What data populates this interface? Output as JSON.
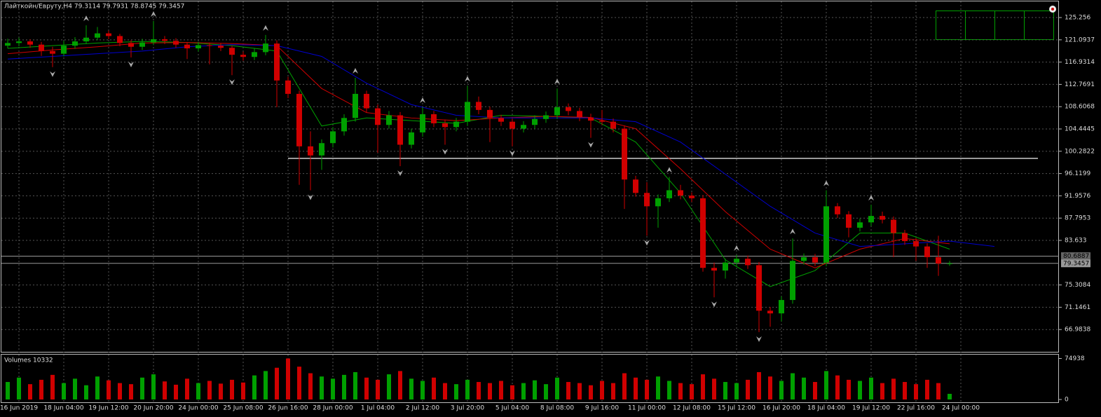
{
  "chart_data": {
    "type": "candlestick",
    "title": "Лайткойн/Евруту,H4  79.3114 79.7931 78.8745 79.3457",
    "bull_color": "#00a000",
    "bear_color": "#d00000",
    "ohlc": [
      [
        120.0,
        121.3,
        119.5,
        120.5
      ],
      [
        120.5,
        121.5,
        119.9,
        120.8
      ],
      [
        120.8,
        121.2,
        119.6,
        120.2
      ],
      [
        120.2,
        120.7,
        118.1,
        119.0
      ],
      [
        119.0,
        119.8,
        116.0,
        118.5
      ],
      [
        118.5,
        120.9,
        118.0,
        120.0
      ],
      [
        120.0,
        121.6,
        119.4,
        120.8
      ],
      [
        120.8,
        123.8,
        120.3,
        121.5
      ],
      [
        121.5,
        123.5,
        121.0,
        122.3
      ],
      [
        122.3,
        122.8,
        121.2,
        121.8
      ],
      [
        121.8,
        122.2,
        119.9,
        120.5
      ],
      [
        120.5,
        121.0,
        117.8,
        119.8
      ],
      [
        119.8,
        121.3,
        119.2,
        120.6
      ],
      [
        120.6,
        124.6,
        120.1,
        121.2
      ],
      [
        121.2,
        121.8,
        120.3,
        120.9
      ],
      [
        120.9,
        121.4,
        119.6,
        120.2
      ],
      [
        120.2,
        120.7,
        117.5,
        119.5
      ],
      [
        119.5,
        120.7,
        118.9,
        120.1
      ],
      [
        120.1,
        120.6,
        116.5,
        120.0
      ],
      [
        120.0,
        120.5,
        119.0,
        119.6
      ],
      [
        119.6,
        120.0,
        114.5,
        118.3
      ],
      [
        118.3,
        118.9,
        117.2,
        117.9
      ],
      [
        117.9,
        119.5,
        117.3,
        118.8
      ],
      [
        118.8,
        122.0,
        118.2,
        120.4
      ],
      [
        120.4,
        121.0,
        108.5,
        113.5
      ],
      [
        113.5,
        114.2,
        110.2,
        111.0
      ],
      [
        111.0,
        111.6,
        94.0,
        101.2
      ],
      [
        101.2,
        104.0,
        93.0,
        99.5
      ],
      [
        99.5,
        102.5,
        96.8,
        101.8
      ],
      [
        101.8,
        104.8,
        101.0,
        104.0
      ],
      [
        104.0,
        107.2,
        103.2,
        106.5
      ],
      [
        106.5,
        114.0,
        105.8,
        111.0
      ],
      [
        111.0,
        111.6,
        107.5,
        108.3
      ],
      [
        108.3,
        109.0,
        100.0,
        105.2
      ],
      [
        105.2,
        107.8,
        104.5,
        107.0
      ],
      [
        107.0,
        107.6,
        97.5,
        101.5
      ],
      [
        101.5,
        104.5,
        100.8,
        103.8
      ],
      [
        103.8,
        108.5,
        103.0,
        107.2
      ],
      [
        107.2,
        107.8,
        104.8,
        105.5
      ],
      [
        105.5,
        106.2,
        101.5,
        104.8
      ],
      [
        104.8,
        106.5,
        104.0,
        105.8
      ],
      [
        105.8,
        112.5,
        105.0,
        109.5
      ],
      [
        109.5,
        110.5,
        107.2,
        108.0
      ],
      [
        108.0,
        108.6,
        102.0,
        106.5
      ],
      [
        106.5,
        107.1,
        105.0,
        105.8
      ],
      [
        105.8,
        106.4,
        101.2,
        104.5
      ],
      [
        104.5,
        105.9,
        103.8,
        105.2
      ],
      [
        105.2,
        107.0,
        104.5,
        106.3
      ],
      [
        106.3,
        107.7,
        105.6,
        107.0
      ],
      [
        107.0,
        112.0,
        106.3,
        108.5
      ],
      [
        108.5,
        109.2,
        107.0,
        107.8
      ],
      [
        107.8,
        108.4,
        105.9,
        106.6
      ],
      [
        106.6,
        107.3,
        102.8,
        106.0
      ],
      [
        106.0,
        108.0,
        105.2,
        105.8
      ],
      [
        105.8,
        106.4,
        103.8,
        104.5
      ],
      [
        104.5,
        105.1,
        89.5,
        95.0
      ],
      [
        95.0,
        95.7,
        91.8,
        92.5
      ],
      [
        92.5,
        94.5,
        84.5,
        90.0
      ],
      [
        90.0,
        92.2,
        86.0,
        91.5
      ],
      [
        91.5,
        95.5,
        90.8,
        93.0
      ],
      [
        93.0,
        94.0,
        91.3,
        92.0
      ],
      [
        92.0,
        92.6,
        90.8,
        91.5
      ],
      [
        91.5,
        92.1,
        77.8,
        78.5
      ],
      [
        78.5,
        79.5,
        73.0,
        78.0
      ],
      [
        78.0,
        80.2,
        76.5,
        79.5
      ],
      [
        79.5,
        80.9,
        78.8,
        80.2
      ],
      [
        80.2,
        80.8,
        78.3,
        79.0
      ],
      [
        79.0,
        79.6,
        66.5,
        70.5
      ],
      [
        70.5,
        71.2,
        67.5,
        70.0
      ],
      [
        70.0,
        73.2,
        68.5,
        72.5
      ],
      [
        72.5,
        84.0,
        71.8,
        79.8
      ],
      [
        79.8,
        81.2,
        79.1,
        80.5
      ],
      [
        80.5,
        81.1,
        78.8,
        79.5
      ],
      [
        79.5,
        93.0,
        78.8,
        90.0
      ],
      [
        90.0,
        90.6,
        87.8,
        88.5
      ],
      [
        88.5,
        89.1,
        84.2,
        86.0
      ],
      [
        86.0,
        87.7,
        85.3,
        87.0
      ],
      [
        87.0,
        90.3,
        86.3,
        88.2
      ],
      [
        88.2,
        89.0,
        86.8,
        87.5
      ],
      [
        87.5,
        88.1,
        80.5,
        85.0
      ],
      [
        85.0,
        85.6,
        82.8,
        83.5
      ],
      [
        83.5,
        84.1,
        79.8,
        82.5
      ],
      [
        82.5,
        83.1,
        78.5,
        80.5
      ],
      [
        80.5,
        84.5,
        77.0,
        79.3114
      ],
      [
        79.3114,
        79.7931,
        78.8745,
        79.3457
      ]
    ],
    "ma": [
      {
        "color": "#00a000",
        "x": [
          0,
          4,
          8,
          12,
          16,
          20,
          24,
          28,
          32,
          36,
          40,
          44,
          48,
          52,
          56,
          60,
          64,
          68,
          72,
          76,
          80,
          84
        ],
        "values": [
          119.5,
          120.0,
          120.5,
          120.8,
          120.6,
          120.0,
          119.0,
          105,
          106.5,
          106,
          105.5,
          107,
          106.8,
          106.5,
          102,
          92.5,
          80,
          75,
          78,
          85,
          85,
          82
        ]
      },
      {
        "color": "#d00000",
        "x": [
          0,
          4,
          8,
          12,
          16,
          20,
          24,
          28,
          32,
          36,
          40,
          44,
          48,
          52,
          56,
          60,
          64,
          68,
          72,
          76,
          80,
          84
        ],
        "values": [
          118.5,
          119.2,
          119.8,
          120.5,
          120.6,
          120.4,
          120.0,
          112,
          107.5,
          106.5,
          106,
          106.5,
          106.8,
          106.6,
          104.5,
          97,
          89,
          82,
          78.5,
          82,
          84,
          83
        ]
      },
      {
        "color": "#0000d0",
        "x": [
          0,
          4,
          8,
          12,
          16,
          20,
          24,
          28,
          32,
          36,
          40,
          44,
          48,
          52,
          56,
          60,
          64,
          68,
          72,
          76,
          80,
          84,
          88
        ],
        "values": [
          117.5,
          118.0,
          118.5,
          119.0,
          119.8,
          120.2,
          120.0,
          118,
          113,
          109,
          107,
          106.5,
          106.5,
          106.5,
          105.8,
          102,
          96,
          90,
          85,
          82.5,
          83,
          83.5,
          82.5
        ]
      }
    ],
    "ylim": [
      62.69,
      128.27
    ],
    "yticks": [
      125.256,
      121.0937,
      116.9314,
      112.7691,
      108.6068,
      104.4445,
      100.2822,
      96.1199,
      91.9576,
      87.7953,
      83.633,
      75.3084,
      71.1461,
      66.9838
    ],
    "price_lines": [
      80.6887,
      79.3457
    ],
    "level_line": 98.95,
    "x_labels": [
      "16 Jun 2019",
      "18 Jun 04:00",
      "19 Jun 12:00",
      "20 Jun 20:00",
      "24 Jun 00:00",
      "25 Jun 08:00",
      "26 Jun 16:00",
      "28 Jun 00:00",
      "1 Jul 04:00",
      "2 Jul 12:00",
      "3 Jul 20:00",
      "5 Jul 04:00",
      "8 Jul 08:00",
      "9 Jul 16:00",
      "11 Jul 00:00",
      "12 Jul 08:00",
      "15 Jul 12:00",
      "16 Jul 20:00",
      "18 Jul 04:00",
      "19 Jul 12:00",
      "22 Jul 16:00",
      "24 Jul 00:00"
    ],
    "grid": true,
    "volume_label": "Volumes 10332",
    "volumes": [
      32000,
      40000,
      28000,
      36000,
      45000,
      30000,
      38000,
      26000,
      42000,
      35000,
      30000,
      28000,
      40000,
      46000,
      33000,
      27000,
      38000,
      30000,
      34000,
      29000,
      36000,
      31000,
      44000,
      52000,
      58000,
      74938,
      60000,
      48000,
      42000,
      38000,
      45000,
      50000,
      40000,
      36000,
      46000,
      52000,
      38000,
      34000,
      40000,
      30000,
      28000,
      36000,
      32000,
      30000,
      34000,
      26000,
      30000,
      35000,
      28000,
      40000,
      32000,
      30000,
      26000,
      34000,
      30000,
      48000,
      40000,
      36000,
      42000,
      34000,
      30000,
      28000,
      46000,
      38000,
      32000,
      30000,
      36000,
      50000,
      42000,
      34000,
      48000,
      40000,
      32000,
      52000,
      44000,
      36000,
      34000,
      40000,
      30000,
      38000,
      32000,
      28000,
      36000,
      30000,
      10332
    ],
    "vol_ylim": [
      0,
      82000
    ],
    "vol_yticks": [
      0,
      74938
    ]
  }
}
